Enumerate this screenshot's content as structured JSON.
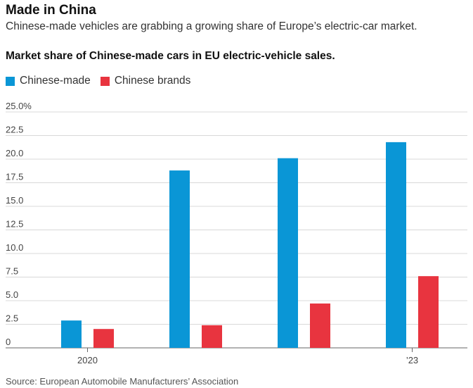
{
  "headline": "Made in China",
  "dek": "Chinese-made vehicles are grabbing a growing share of Europe’s electric-car market.",
  "source": "Source: European Automobile Manufacturers’ Association",
  "colors": {
    "chinese_made": "#0a96d6",
    "chinese_brands": "#e8343f",
    "grid": "#d8d8d8",
    "axis": "#666666"
  },
  "chart_data": {
    "type": "bar",
    "title": "Market share of Chinese-made cars in EU electric-vehicle sales.",
    "categories": [
      "2020",
      "",
      "",
      "’23"
    ],
    "series": [
      {
        "name": "Chinese-made",
        "values": [
          2.9,
          18.8,
          20.1,
          21.8
        ]
      },
      {
        "name": "Chinese brands",
        "values": [
          2.0,
          2.4,
          4.7,
          7.6
        ]
      }
    ],
    "ylim": [
      0,
      25
    ],
    "yticks": [
      0,
      2.5,
      5.0,
      7.5,
      10.0,
      12.5,
      15.0,
      17.5,
      20.0,
      22.5,
      25.0
    ],
    "ytick_labels": [
      "0",
      "2.5",
      "5.0",
      "7.5",
      "10.0",
      "12.5",
      "15.0",
      "17.5",
      "20.0",
      "22.5",
      "25.0%"
    ],
    "grid": true,
    "legend": "top-left",
    "xlabel": "",
    "ylabel": ""
  }
}
